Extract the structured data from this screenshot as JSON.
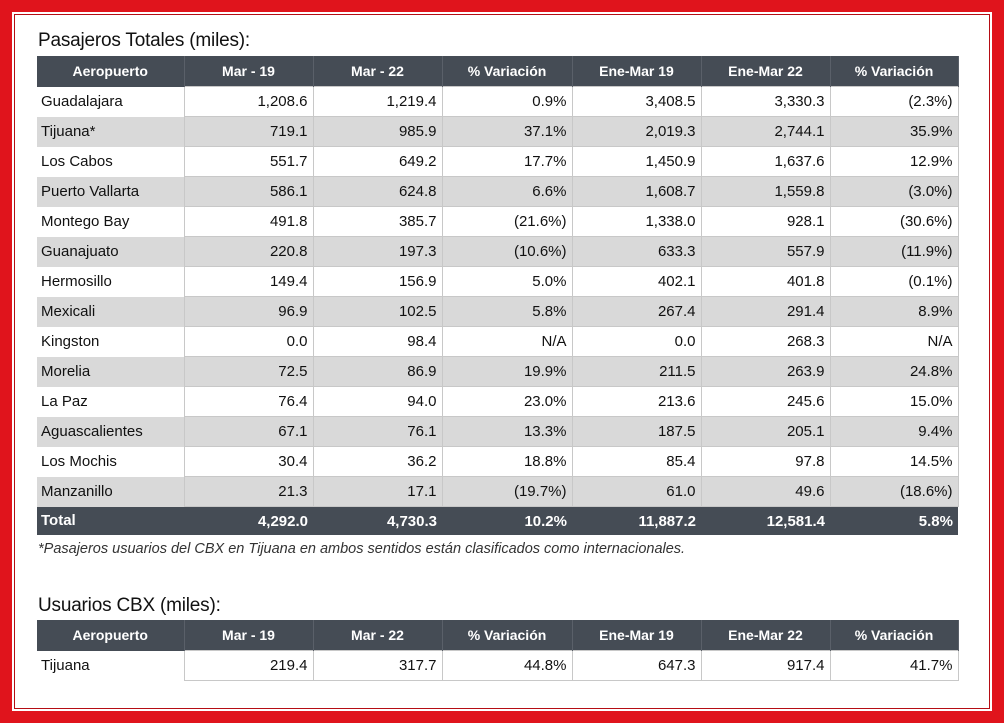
{
  "colors": {
    "frame": "#e0141c",
    "header": "#454c55",
    "shade": "#d9d9d9"
  },
  "section1": {
    "title": "Pasajeros Totales (miles):",
    "headers": [
      "Aeropuerto",
      "Mar - 19",
      "Mar - 22",
      "% Variación",
      "Ene-Mar 19",
      "Ene-Mar 22",
      "% Variación"
    ],
    "rows": [
      [
        "Guadalajara",
        "1,208.6",
        "1,219.4",
        "0.9%",
        "3,408.5",
        "3,330.3",
        "(2.3%)"
      ],
      [
        "Tijuana*",
        "719.1",
        "985.9",
        "37.1%",
        "2,019.3",
        "2,744.1",
        "35.9%"
      ],
      [
        "Los Cabos",
        "551.7",
        "649.2",
        "17.7%",
        "1,450.9",
        "1,637.6",
        "12.9%"
      ],
      [
        "Puerto Vallarta",
        "586.1",
        "624.8",
        "6.6%",
        "1,608.7",
        "1,559.8",
        "(3.0%)"
      ],
      [
        "Montego Bay",
        "491.8",
        "385.7",
        "(21.6%)",
        "1,338.0",
        "928.1",
        "(30.6%)"
      ],
      [
        "Guanajuato",
        "220.8",
        "197.3",
        "(10.6%)",
        "633.3",
        "557.9",
        "(11.9%)"
      ],
      [
        "Hermosillo",
        "149.4",
        "156.9",
        "5.0%",
        "402.1",
        "401.8",
        "(0.1%)"
      ],
      [
        "Mexicali",
        "96.9",
        "102.5",
        "5.8%",
        "267.4",
        "291.4",
        "8.9%"
      ],
      [
        "Kingston",
        "0.0",
        "98.4",
        "N/A",
        "0.0",
        "268.3",
        "N/A"
      ],
      [
        "Morelia",
        "72.5",
        "86.9",
        "19.9%",
        "211.5",
        "263.9",
        "24.8%"
      ],
      [
        "La Paz",
        "76.4",
        "94.0",
        "23.0%",
        "213.6",
        "245.6",
        "15.0%"
      ],
      [
        "Aguascalientes",
        "67.1",
        "76.1",
        "13.3%",
        "187.5",
        "205.1",
        "9.4%"
      ],
      [
        "Los Mochis",
        "30.4",
        "36.2",
        "18.8%",
        "85.4",
        "97.8",
        "14.5%"
      ],
      [
        "Manzanillo",
        "21.3",
        "17.1",
        "(19.7%)",
        "61.0",
        "49.6",
        "(18.6%)"
      ]
    ],
    "total": [
      "Total",
      "4,292.0",
      "4,730.3",
      "10.2%",
      "11,887.2",
      "12,581.4",
      "5.8%"
    ],
    "footnote": "*Pasajeros usuarios del CBX en Tijuana en ambos sentidos están clasificados como internacionales."
  },
  "section2": {
    "title": "Usuarios CBX (miles):",
    "headers": [
      "Aeropuerto",
      "Mar - 19",
      "Mar - 22",
      "% Variación",
      "Ene-Mar 19",
      "Ene-Mar 22",
      "% Variación"
    ],
    "rows": [
      [
        "Tijuana",
        "219.4",
        "317.7",
        "44.8%",
        "647.3",
        "917.4",
        "41.7%"
      ]
    ]
  }
}
